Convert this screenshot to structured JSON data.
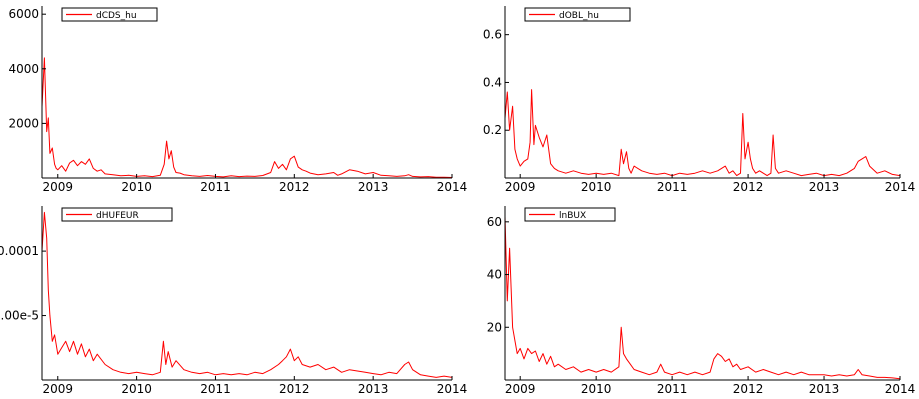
{
  "chart_data": [
    {
      "type": "line",
      "legend": "dCDS_hu",
      "legend_position": "top-left",
      "x_ticks": [
        "2009",
        "2010",
        "2011",
        "2012",
        "2013",
        "2014"
      ],
      "x_range": [
        2008.8,
        2014.0
      ],
      "y_ticks": [
        "2000",
        "4000",
        "6000"
      ],
      "y_tick_values": [
        2000,
        4000,
        6000
      ],
      "y_range": [
        0,
        6300
      ],
      "color": "#ff0000",
      "series": [
        {
          "x": [
            2008.75,
            2008.78,
            2008.8,
            2008.83,
            2008.86,
            2008.88,
            2008.9,
            2008.93,
            2008.96,
            2008.98,
            2009.0,
            2009.05,
            2009.1,
            2009.15,
            2009.2,
            2009.25,
            2009.3,
            2009.35,
            2009.4,
            2009.45,
            2009.5,
            2009.55,
            2009.6,
            2009.7,
            2009.8,
            2009.9,
            2010.0,
            2010.1,
            2010.2,
            2010.3,
            2010.35,
            2010.38,
            2010.41,
            2010.44,
            2010.47,
            2010.5,
            2010.55,
            2010.6,
            2010.7,
            2010.8,
            2010.9,
            2011.0,
            2011.1,
            2011.2,
            2011.3,
            2011.4,
            2011.5,
            2011.6,
            2011.7,
            2011.75,
            2011.8,
            2011.85,
            2011.9,
            2011.95,
            2012.0,
            2012.05,
            2012.1,
            2012.15,
            2012.2,
            2012.3,
            2012.4,
            2012.5,
            2012.55,
            2012.6,
            2012.7,
            2012.8,
            2012.9,
            2013.0,
            2013.1,
            2013.2,
            2013.3,
            2013.4,
            2013.45,
            2013.5,
            2013.6,
            2013.7,
            2013.8,
            2013.9,
            2014.0
          ],
          "y": [
            4200,
            6100,
            2600,
            4400,
            1700,
            2200,
            900,
            1100,
            500,
            350,
            300,
            450,
            250,
            550,
            650,
            450,
            600,
            500,
            700,
            350,
            250,
            300,
            150,
            120,
            80,
            100,
            60,
            80,
            50,
            100,
            500,
            1350,
            700,
            1000,
            400,
            200,
            180,
            120,
            80,
            60,
            90,
            60,
            40,
            80,
            50,
            70,
            60,
            90,
            200,
            600,
            350,
            500,
            300,
            700,
            800,
            400,
            300,
            250,
            180,
            120,
            150,
            200,
            100,
            150,
            300,
            250,
            150,
            200,
            100,
            80,
            60,
            80,
            120,
            60,
            40,
            50,
            30,
            30,
            20
          ]
        }
      ]
    },
    {
      "type": "line",
      "legend": "dOBL_hu",
      "legend_position": "top-left",
      "x_ticks": [
        "2009",
        "2010",
        "2011",
        "2012",
        "2013",
        "2014"
      ],
      "x_range": [
        2008.8,
        2014.0
      ],
      "y_ticks": [
        "0.2",
        "0.4",
        "0.6"
      ],
      "y_tick_values": [
        0.2,
        0.4,
        0.6
      ],
      "y_range": [
        0,
        0.72
      ],
      "color": "#ff0000",
      "series": [
        {
          "x": [
            2008.78,
            2008.8,
            2008.83,
            2008.86,
            2008.9,
            2008.93,
            2008.96,
            2009.0,
            2009.05,
            2009.1,
            2009.13,
            2009.15,
            2009.18,
            2009.2,
            2009.25,
            2009.3,
            2009.35,
            2009.4,
            2009.45,
            2009.5,
            2009.6,
            2009.7,
            2009.8,
            2009.9,
            2010.0,
            2010.1,
            2010.2,
            2010.3,
            2010.33,
            2010.36,
            2010.4,
            2010.43,
            2010.46,
            2010.5,
            2010.6,
            2010.7,
            2010.8,
            2010.9,
            2011.0,
            2011.1,
            2011.2,
            2011.3,
            2011.4,
            2011.5,
            2011.6,
            2011.7,
            2011.75,
            2011.8,
            2011.85,
            2011.9,
            2011.93,
            2011.96,
            2012.0,
            2012.03,
            2012.06,
            2012.1,
            2012.15,
            2012.2,
            2012.25,
            2012.3,
            2012.33,
            2012.36,
            2012.4,
            2012.5,
            2012.6,
            2012.7,
            2012.8,
            2012.9,
            2013.0,
            2013.1,
            2013.2,
            2013.3,
            2013.35,
            2013.4,
            2013.45,
            2013.5,
            2013.55,
            2013.6,
            2013.7,
            2013.8,
            2013.9,
            2014.0
          ],
          "y": [
            0.35,
            0.25,
            0.36,
            0.2,
            0.3,
            0.12,
            0.08,
            0.05,
            0.07,
            0.08,
            0.15,
            0.37,
            0.14,
            0.22,
            0.17,
            0.13,
            0.18,
            0.06,
            0.04,
            0.03,
            0.02,
            0.03,
            0.02,
            0.015,
            0.02,
            0.015,
            0.02,
            0.01,
            0.12,
            0.06,
            0.11,
            0.04,
            0.02,
            0.05,
            0.03,
            0.02,
            0.015,
            0.02,
            0.01,
            0.02,
            0.015,
            0.02,
            0.03,
            0.02,
            0.03,
            0.05,
            0.02,
            0.03,
            0.01,
            0.02,
            0.27,
            0.08,
            0.15,
            0.08,
            0.04,
            0.02,
            0.03,
            0.02,
            0.01,
            0.02,
            0.18,
            0.04,
            0.02,
            0.03,
            0.02,
            0.01,
            0.015,
            0.02,
            0.01,
            0.015,
            0.01,
            0.02,
            0.03,
            0.04,
            0.07,
            0.08,
            0.09,
            0.05,
            0.02,
            0.03,
            0.015,
            0.01
          ]
        }
      ]
    },
    {
      "type": "line",
      "legend": "dHUFEUR",
      "legend_position": "top-left",
      "x_ticks": [
        "2009",
        "2010",
        "2011",
        "2012",
        "2013",
        "2014"
      ],
      "x_range": [
        2008.8,
        2014.0
      ],
      "y_ticks": [
        "5.00e-5",
        "0.0001"
      ],
      "y_tick_values": [
        5e-05,
        0.0001
      ],
      "y_range": [
        0,
        0.000135
      ],
      "color": "#ff0000",
      "series": [
        {
          "x": [
            2008.78,
            2008.8,
            2008.83,
            2008.86,
            2008.88,
            2008.9,
            2008.93,
            2008.96,
            2009.0,
            2009.05,
            2009.1,
            2009.15,
            2009.2,
            2009.25,
            2009.3,
            2009.35,
            2009.4,
            2009.45,
            2009.5,
            2009.6,
            2009.7,
            2009.8,
            2009.9,
            2010.0,
            2010.1,
            2010.2,
            2010.3,
            2010.34,
            2010.37,
            2010.4,
            2010.45,
            2010.5,
            2010.6,
            2010.7,
            2010.8,
            2010.9,
            2011.0,
            2011.1,
            2011.2,
            2011.3,
            2011.4,
            2011.5,
            2011.6,
            2011.7,
            2011.8,
            2011.85,
            2011.9,
            2011.95,
            2012.0,
            2012.05,
            2012.1,
            2012.2,
            2012.3,
            2012.4,
            2012.5,
            2012.6,
            2012.7,
            2012.8,
            2012.9,
            2013.0,
            2013.1,
            2013.2,
            2013.3,
            2013.4,
            2013.45,
            2013.5,
            2013.6,
            2013.7,
            2013.8,
            2013.9,
            2014.0
          ],
          "y": [
            0.000128,
            0.0001,
            0.00013,
            0.00011,
            7e-05,
            5e-05,
            3e-05,
            3.5e-05,
            2e-05,
            2.5e-05,
            3e-05,
            2.2e-05,
            3e-05,
            2e-05,
            2.8e-05,
            1.8e-05,
            2.4e-05,
            1.5e-05,
            2e-05,
            1.2e-05,
            8e-06,
            6e-06,
            5e-06,
            6e-06,
            5e-06,
            4e-06,
            6e-06,
            3e-05,
            1.2e-05,
            2.2e-05,
            1e-05,
            1.5e-05,
            8e-06,
            6e-06,
            5e-06,
            6e-06,
            4e-06,
            5e-06,
            4e-06,
            5e-06,
            4e-06,
            6e-06,
            5e-06,
            8e-06,
            1.2e-05,
            1.5e-05,
            1.8e-05,
            2.4e-05,
            1.5e-05,
            1.8e-05,
            1.2e-05,
            1e-05,
            1.2e-05,
            8e-06,
            1e-05,
            6e-06,
            8e-06,
            7e-06,
            6e-06,
            5e-06,
            4e-06,
            6e-06,
            5e-06,
            1.2e-05,
            1.4e-05,
            8e-06,
            4e-06,
            3e-06,
            2e-06,
            3e-06,
            2e-06
          ]
        }
      ]
    },
    {
      "type": "line",
      "legend": "lnBUX",
      "legend_position": "top-left",
      "x_ticks": [
        "2009",
        "2010",
        "2011",
        "2012",
        "2013",
        "2014"
      ],
      "x_range": [
        2008.8,
        2014.0
      ],
      "y_ticks": [
        "20",
        "40",
        "60"
      ],
      "y_tick_values": [
        20,
        40,
        60
      ],
      "y_range": [
        0,
        66
      ],
      "color": "#ff0000",
      "series": [
        {
          "x": [
            2008.78,
            2008.8,
            2008.83,
            2008.86,
            2008.88,
            2008.9,
            2008.93,
            2008.96,
            2009.0,
            2009.05,
            2009.1,
            2009.15,
            2009.2,
            2009.25,
            2009.3,
            2009.35,
            2009.4,
            2009.45,
            2009.5,
            2009.6,
            2009.7,
            2009.8,
            2009.9,
            2010.0,
            2010.1,
            2010.2,
            2010.3,
            2010.33,
            2010.36,
            2010.4,
            2010.45,
            2010.5,
            2010.6,
            2010.7,
            2010.8,
            2010.85,
            2010.9,
            2011.0,
            2011.1,
            2011.2,
            2011.3,
            2011.4,
            2011.5,
            2011.55,
            2011.6,
            2011.65,
            2011.7,
            2011.75,
            2011.8,
            2011.85,
            2011.9,
            2012.0,
            2012.1,
            2012.2,
            2012.3,
            2012.4,
            2012.5,
            2012.6,
            2012.7,
            2012.8,
            2012.9,
            2013.0,
            2013.1,
            2013.2,
            2013.3,
            2013.4,
            2013.45,
            2013.5,
            2013.6,
            2013.7,
            2013.8,
            2013.9,
            2014.0
          ],
          "y": [
            45,
            62,
            30,
            50,
            35,
            20,
            15,
            10,
            12,
            8,
            12,
            10,
            11,
            7,
            10,
            6,
            9,
            5,
            6,
            4,
            5,
            3,
            4,
            3,
            4,
            3,
            5,
            20,
            10,
            8,
            6,
            4,
            3,
            2,
            3,
            6,
            3,
            2,
            3,
            2,
            3,
            2,
            3,
            8,
            10,
            9,
            7,
            8,
            5,
            6,
            4,
            5,
            3,
            4,
            3,
            2,
            3,
            2,
            3,
            2,
            2,
            2,
            1.5,
            2,
            1.5,
            2,
            4,
            2,
            1.5,
            1,
            1,
            0.8,
            0.5
          ]
        }
      ]
    }
  ]
}
